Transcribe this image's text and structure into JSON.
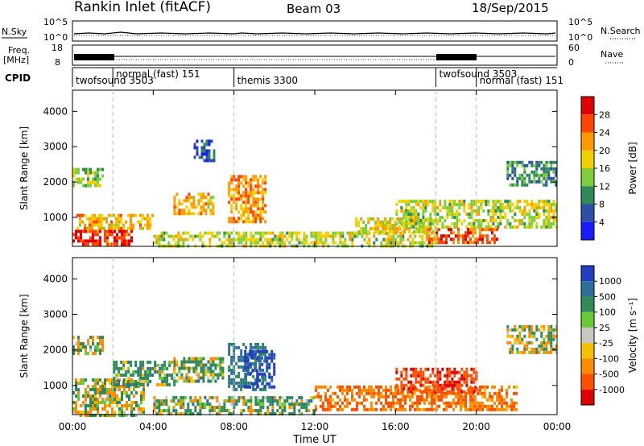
{
  "header": {
    "station": "Rankin Inlet (fitACF)",
    "beam": "Beam 03",
    "date": "18/Sep/2015"
  },
  "strip_labels": {
    "nsky": "N.Sky",
    "nsky_ticks": [
      "10^5",
      "10^0"
    ],
    "nsearch": "N.Search",
    "freq_line1": "Freq.",
    "freq_line2": "[MHz]",
    "freq_ticks": [
      "18",
      "8"
    ],
    "nave": "Nave",
    "nave_ticks": [
      "60",
      "0"
    ],
    "cpid": "CPID"
  },
  "cpid_segments": [
    {
      "name": "twofsound 3503",
      "start_h": 0.0,
      "end_h": 2.0,
      "row": 2
    },
    {
      "name": "normal (fast) 151",
      "start_h": 2.0,
      "end_h": 8.0,
      "row": 1
    },
    {
      "name": "themis 3300",
      "start_h": 8.0,
      "end_h": 18.0,
      "row": 2
    },
    {
      "name": "twofsound 3503",
      "start_h": 18.0,
      "end_h": 20.0,
      "row": 1
    },
    {
      "name": "normal (fast) 151",
      "start_h": 20.0,
      "end_h": 24.0,
      "row": 2
    }
  ],
  "time_axis": {
    "label": "Time UT",
    "ticks": [
      "00:00",
      "04:00",
      "08:00",
      "12:00",
      "16:00",
      "20:00",
      "00:00"
    ]
  },
  "panels": [
    {
      "id": "power",
      "ylabel": "Slant Range [km]",
      "yticks": [
        "1000",
        "2000",
        "3000",
        "4000"
      ],
      "colorbar_label": "Power [dB]",
      "colorbar_ticks": [
        "4",
        "8",
        "12",
        "16",
        "20",
        "24",
        "28"
      ],
      "colors": [
        "#1a1aff",
        "#2e4fa8",
        "#2e8b57",
        "#7ccf3a",
        "#f0d000",
        "#ff9900",
        "#ff4500",
        "#e00000"
      ]
    },
    {
      "id": "velocity",
      "ylabel": "Slant Range [km]",
      "yticks": [
        "1000",
        "2000",
        "3000",
        "4000"
      ],
      "colorbar_label": "Velocity [m s⁻¹]",
      "colorbar_ticks": [
        "1000",
        "500",
        "100",
        "25",
        "-25",
        "-100",
        "-500",
        "-1000"
      ],
      "colors": [
        "#1f3fbf",
        "#2e6e9a",
        "#2e8b57",
        "#66cc33",
        "#c8c8c0",
        "#f5c000",
        "#ff8c00",
        "#ff5000",
        "#e00000"
      ]
    }
  ],
  "chart_data": [
    {
      "type": "heatmap",
      "title": "Rankin Inlet (fitACF)",
      "xlabel": "Time UT",
      "ylabel": "Slant Range [km]",
      "xlim": [
        0,
        24
      ],
      "ylim": [
        180,
        4600
      ],
      "colorbar": {
        "label": "Power [dB]",
        "range": [
          0,
          30
        ]
      },
      "patches": [
        {
          "t0": 0.0,
          "t1": 3.0,
          "r0": 200,
          "r1": 650,
          "value": 28
        },
        {
          "t0": 0.2,
          "t1": 4.0,
          "r0": 650,
          "r1": 1100,
          "value": 20
        },
        {
          "t0": 0.0,
          "t1": 1.5,
          "r0": 1900,
          "r1": 2400,
          "value": 14
        },
        {
          "t0": 5.0,
          "t1": 7.0,
          "r0": 1100,
          "r1": 1700,
          "value": 20
        },
        {
          "t0": 6.0,
          "t1": 7.0,
          "r0": 2600,
          "r1": 3200,
          "value": 6
        },
        {
          "t0": 7.7,
          "t1": 9.5,
          "r0": 900,
          "r1": 2200,
          "value": 22
        },
        {
          "t0": 4.0,
          "t1": 18.0,
          "r0": 200,
          "r1": 600,
          "value": 16
        },
        {
          "t0": 14.0,
          "t1": 18.0,
          "r0": 600,
          "r1": 1000,
          "value": 18
        },
        {
          "t0": 16.0,
          "t1": 24.0,
          "r0": 700,
          "r1": 1500,
          "value": 16
        },
        {
          "t0": 17.5,
          "t1": 21.0,
          "r0": 300,
          "r1": 700,
          "value": 26
        },
        {
          "t0": 21.5,
          "t1": 24.0,
          "r0": 1900,
          "r1": 2600,
          "value": 10
        }
      ]
    },
    {
      "type": "heatmap",
      "title": "Beam 03",
      "xlabel": "Time UT",
      "ylabel": "Slant Range [km]",
      "xlim": [
        0,
        24
      ],
      "ylim": [
        180,
        4600
      ],
      "colorbar": {
        "label": "Velocity [m s⁻¹]",
        "range": [
          -1000,
          1000
        ]
      },
      "patches": [
        {
          "t0": 0.0,
          "t1": 3.5,
          "r0": 200,
          "r1": 1200,
          "value": 0
        },
        {
          "t0": 0.0,
          "t1": 1.5,
          "r0": 1900,
          "r1": 2400,
          "value": 0
        },
        {
          "t0": 2.0,
          "t1": 5.0,
          "r0": 1000,
          "r1": 1700,
          "value": 150
        },
        {
          "t0": 5.0,
          "t1": 7.5,
          "r0": 1100,
          "r1": 1800,
          "value": 80
        },
        {
          "t0": 7.7,
          "t1": 9.5,
          "r0": 900,
          "r1": 2200,
          "value": 400
        },
        {
          "t0": 8.5,
          "t1": 10.0,
          "r0": 1000,
          "r1": 2000,
          "value": 800
        },
        {
          "t0": 4.0,
          "t1": 12.0,
          "r0": 200,
          "r1": 700,
          "value": 100
        },
        {
          "t0": 12.0,
          "t1": 22.0,
          "r0": 300,
          "r1": 1000,
          "value": -300
        },
        {
          "t0": 16.0,
          "t1": 20.0,
          "r0": 800,
          "r1": 1500,
          "value": -600
        },
        {
          "t0": 21.5,
          "t1": 24.0,
          "r0": 1900,
          "r1": 2700,
          "value": 0
        }
      ]
    }
  ]
}
